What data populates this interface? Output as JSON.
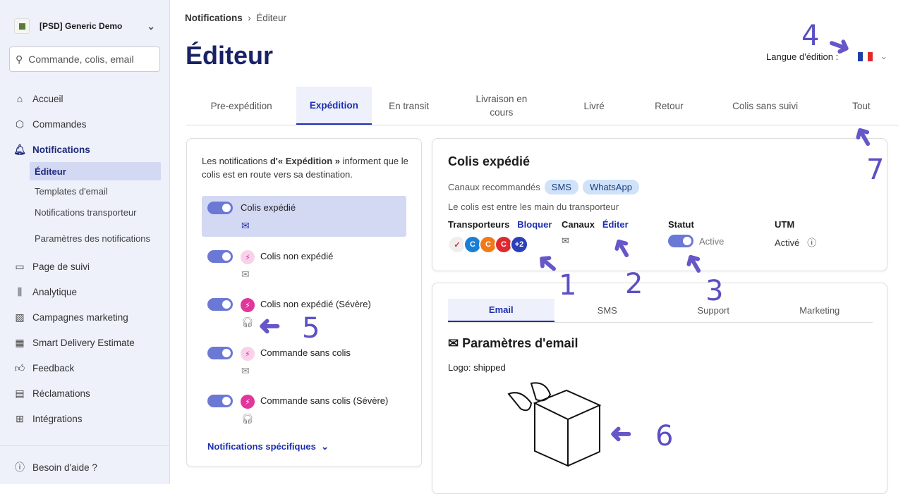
{
  "sidebar": {
    "org": "[PSD] Generic Demo",
    "search_placeholder": "Commande, colis, email",
    "items": [
      {
        "label": "Accueil",
        "icon": "home-icon"
      },
      {
        "label": "Commandes",
        "icon": "box-icon"
      },
      {
        "label": "Notifications",
        "icon": "bell-icon"
      }
    ],
    "sub": [
      "Éditeur",
      "Templates d'email",
      "Notifications transporteur",
      "Paramètres des notifications"
    ],
    "items2": [
      {
        "label": "Page de suivi"
      },
      {
        "label": "Analytique"
      },
      {
        "label": "Campagnes marketing"
      },
      {
        "label": "Smart Delivery Estimate"
      },
      {
        "label": "Feedback"
      },
      {
        "label": "Réclamations"
      },
      {
        "label": "Intégrations"
      }
    ],
    "help": "Besoin d'aide ?"
  },
  "breadcrumb": {
    "parent": "Notifications",
    "current": "Éditeur"
  },
  "title": "Éditeur",
  "lang_label": "Langue d'édition :",
  "tabs": [
    "Pre-expédition",
    "Expédition",
    "En transit",
    "Livraison en cours",
    "Livré",
    "Retour",
    "Colis sans suivi",
    "Tout"
  ],
  "left": {
    "intro_pre": "Les notifications ",
    "intro_bold": "d'« Expédition »",
    "intro_post": " informent que le colis est en route vers sa destination.",
    "notifications": [
      "Colis expédié",
      "Colis non expédié",
      "Colis non expédié (Sévère)",
      "Commande sans colis",
      "Commande sans colis (Sévère)"
    ],
    "specific": "Notifications spécifiques"
  },
  "detail": {
    "title": "Colis expédié",
    "recommended": "Canaux recommandés",
    "pills": [
      "SMS",
      "WhatsApp"
    ],
    "desc": "Le colis est entre les main du transporteur",
    "carriers_label": "Transporteurs",
    "block": "Bloquer",
    "channels_label": "Canaux",
    "edit": "Éditer",
    "status_label": "Statut",
    "status": "Active",
    "utm_label": "UTM",
    "utm": "Activé",
    "more_carriers": "+2"
  },
  "email": {
    "tabs": [
      "Email",
      "SMS",
      "Support",
      "Marketing"
    ],
    "heading": "Paramètres d'email",
    "logo": "Logo: shipped"
  },
  "annotations": [
    "1",
    "2",
    "3",
    "4",
    "5",
    "6",
    "7"
  ],
  "colors": {
    "accent": "#1d2fb0",
    "toggle": "#6b78d6",
    "annotation": "#5b4fc4"
  }
}
